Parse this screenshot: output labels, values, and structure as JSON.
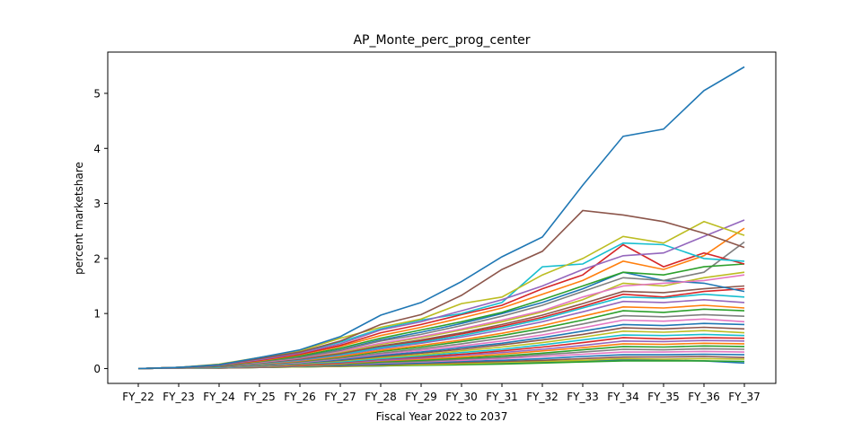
{
  "chart_data": {
    "type": "line",
    "title": "AP_Monte_perc_prog_center",
    "xlabel": "Fiscal Year 2022 to 2037",
    "ylabel": "percent marketshare",
    "categories": [
      "FY_22",
      "FY_23",
      "FY_24",
      "FY_25",
      "FY_26",
      "FY_27",
      "FY_28",
      "FY_29",
      "FY_30",
      "FY_31",
      "FY_32",
      "FY_33",
      "FY_34",
      "FY_35",
      "FY_36",
      "FY_37"
    ],
    "ylim": [
      -0.27,
      5.75
    ],
    "yticks": [
      0,
      1,
      2,
      3,
      4,
      5
    ],
    "grid": false,
    "legend": "none",
    "series": [
      {
        "color": "#1f77b4",
        "values": [
          0,
          0.02,
          0.07,
          0.2,
          0.34,
          0.58,
          0.97,
          1.2,
          1.58,
          2.03,
          2.39,
          3.33,
          4.22,
          4.35,
          5.05,
          5.48
        ]
      },
      {
        "color": "#8c564b",
        "values": [
          0,
          0.02,
          0.07,
          0.18,
          0.3,
          0.5,
          0.8,
          0.98,
          1.33,
          1.8,
          2.13,
          2.87,
          2.79,
          2.67,
          2.46,
          2.2
        ]
      },
      {
        "color": "#bcbd22",
        "values": [
          0,
          0.02,
          0.08,
          0.2,
          0.32,
          0.55,
          0.75,
          0.9,
          1.18,
          1.3,
          1.7,
          2.0,
          2.4,
          2.28,
          2.67,
          2.42
        ]
      },
      {
        "color": "#9467bd",
        "values": [
          0,
          0.02,
          0.06,
          0.16,
          0.28,
          0.45,
          0.7,
          0.85,
          1.05,
          1.25,
          1.5,
          1.8,
          2.05,
          2.1,
          2.4,
          2.7
        ]
      },
      {
        "color": "#17becf",
        "values": [
          0,
          0.02,
          0.07,
          0.17,
          0.29,
          0.48,
          0.72,
          0.88,
          1.0,
          1.2,
          1.85,
          1.9,
          2.28,
          2.25,
          2.0,
          1.95
        ]
      },
      {
        "color": "#d62728",
        "values": [
          0,
          0.02,
          0.06,
          0.15,
          0.26,
          0.42,
          0.65,
          0.8,
          0.98,
          1.15,
          1.45,
          1.7,
          2.25,
          1.85,
          2.1,
          1.9
        ]
      },
      {
        "color": "#ff7f0e",
        "values": [
          0,
          0.02,
          0.06,
          0.14,
          0.25,
          0.4,
          0.6,
          0.75,
          0.92,
          1.1,
          1.35,
          1.6,
          1.95,
          1.8,
          2.05,
          2.55
        ]
      },
      {
        "color": "#2ca02c",
        "values": [
          0,
          0.02,
          0.05,
          0.13,
          0.23,
          0.37,
          0.55,
          0.7,
          0.85,
          1.02,
          1.25,
          1.5,
          1.75,
          1.7,
          1.85,
          1.9
        ]
      },
      {
        "color": "#7f7f7f",
        "values": [
          0,
          0.02,
          0.05,
          0.12,
          0.2,
          0.33,
          0.5,
          0.62,
          0.78,
          0.95,
          1.15,
          1.4,
          1.65,
          1.6,
          1.75,
          2.3
        ]
      },
      {
        "color": "#e377c2",
        "values": [
          0,
          0.02,
          0.05,
          0.11,
          0.19,
          0.31,
          0.46,
          0.58,
          0.72,
          0.88,
          1.05,
          1.3,
          1.5,
          1.55,
          1.6,
          1.7
        ]
      },
      {
        "color": "#1f77b4",
        "values": [
          0,
          0.02,
          0.05,
          0.12,
          0.21,
          0.34,
          0.52,
          0.66,
          0.82,
          1.0,
          1.2,
          1.45,
          1.75,
          1.6,
          1.55,
          1.4
        ]
      },
      {
        "color": "#8c564b",
        "values": [
          0,
          0.02,
          0.04,
          0.1,
          0.17,
          0.27,
          0.41,
          0.52,
          0.65,
          0.8,
          0.97,
          1.18,
          1.4,
          1.38,
          1.45,
          1.5
        ]
      },
      {
        "color": "#bcbd22",
        "values": [
          0,
          0.02,
          0.05,
          0.11,
          0.18,
          0.29,
          0.44,
          0.56,
          0.7,
          0.85,
          1.03,
          1.25,
          1.55,
          1.5,
          1.65,
          1.75
        ]
      },
      {
        "color": "#17becf",
        "values": [
          0,
          0.02,
          0.04,
          0.09,
          0.16,
          0.25,
          0.38,
          0.48,
          0.6,
          0.74,
          0.9,
          1.1,
          1.3,
          1.28,
          1.35,
          1.3
        ]
      },
      {
        "color": "#d62728",
        "values": [
          0,
          0.02,
          0.04,
          0.1,
          0.16,
          0.26,
          0.4,
          0.5,
          0.63,
          0.77,
          0.93,
          1.13,
          1.35,
          1.3,
          1.4,
          1.45
        ]
      },
      {
        "color": "#9467bd",
        "values": [
          0,
          0.02,
          0.04,
          0.09,
          0.15,
          0.24,
          0.36,
          0.46,
          0.57,
          0.7,
          0.85,
          1.03,
          1.22,
          1.2,
          1.25,
          1.2
        ]
      },
      {
        "color": "#ff7f0e",
        "values": [
          0,
          0.02,
          0.04,
          0.08,
          0.14,
          0.22,
          0.33,
          0.42,
          0.52,
          0.64,
          0.78,
          0.95,
          1.12,
          1.1,
          1.15,
          1.1
        ]
      },
      {
        "color": "#2ca02c",
        "values": [
          0,
          0.02,
          0.04,
          0.08,
          0.13,
          0.21,
          0.31,
          0.39,
          0.49,
          0.6,
          0.73,
          0.88,
          1.05,
          1.02,
          1.08,
          1.05
        ]
      },
      {
        "color": "#7f7f7f",
        "values": [
          0,
          0.01,
          0.03,
          0.07,
          0.12,
          0.19,
          0.28,
          0.36,
          0.45,
          0.55,
          0.67,
          0.81,
          0.96,
          0.94,
          0.98,
          0.95
        ]
      },
      {
        "color": "#e377c2",
        "values": [
          0,
          0.01,
          0.03,
          0.07,
          0.11,
          0.18,
          0.26,
          0.33,
          0.41,
          0.5,
          0.61,
          0.74,
          0.88,
          0.86,
          0.9,
          0.85
        ]
      },
      {
        "color": "#1f77b4",
        "values": [
          0,
          0.01,
          0.03,
          0.06,
          0.1,
          0.16,
          0.24,
          0.3,
          0.38,
          0.46,
          0.56,
          0.68,
          0.8,
          0.78,
          0.82,
          0.8
        ]
      },
      {
        "color": "#8c564b",
        "values": [
          0,
          0.01,
          0.03,
          0.06,
          0.1,
          0.15,
          0.22,
          0.28,
          0.35,
          0.43,
          0.52,
          0.62,
          0.74,
          0.72,
          0.75,
          0.72
        ]
      },
      {
        "color": "#bcbd22",
        "values": [
          0,
          0.01,
          0.03,
          0.05,
          0.09,
          0.14,
          0.2,
          0.25,
          0.32,
          0.39,
          0.47,
          0.57,
          0.68,
          0.66,
          0.69,
          0.65
        ]
      },
      {
        "color": "#17becf",
        "values": [
          0,
          0.01,
          0.02,
          0.05,
          0.08,
          0.12,
          0.18,
          0.23,
          0.29,
          0.35,
          0.43,
          0.52,
          0.61,
          0.6,
          0.62,
          0.6
        ]
      },
      {
        "color": "#d62728",
        "values": [
          0,
          0.01,
          0.02,
          0.05,
          0.07,
          0.11,
          0.17,
          0.21,
          0.26,
          0.32,
          0.39,
          0.47,
          0.56,
          0.54,
          0.56,
          0.55
        ]
      },
      {
        "color": "#9467bd",
        "values": [
          0,
          0.01,
          0.02,
          0.04,
          0.07,
          0.1,
          0.15,
          0.19,
          0.24,
          0.29,
          0.35,
          0.42,
          0.5,
          0.49,
          0.51,
          0.5
        ]
      },
      {
        "color": "#ff7f0e",
        "values": [
          0,
          0.01,
          0.02,
          0.04,
          0.06,
          0.09,
          0.14,
          0.17,
          0.21,
          0.26,
          0.32,
          0.38,
          0.45,
          0.44,
          0.46,
          0.45
        ]
      },
      {
        "color": "#2ca02c",
        "values": [
          0,
          0.01,
          0.02,
          0.04,
          0.06,
          0.08,
          0.12,
          0.15,
          0.19,
          0.23,
          0.28,
          0.34,
          0.4,
          0.39,
          0.41,
          0.4
        ]
      },
      {
        "color": "#7f7f7f",
        "values": [
          0,
          0.01,
          0.02,
          0.03,
          0.05,
          0.07,
          0.11,
          0.13,
          0.17,
          0.2,
          0.25,
          0.3,
          0.35,
          0.34,
          0.36,
          0.35
        ]
      },
      {
        "color": "#e377c2",
        "values": [
          0,
          0.01,
          0.02,
          0.03,
          0.05,
          0.07,
          0.1,
          0.12,
          0.15,
          0.18,
          0.22,
          0.26,
          0.3,
          0.3,
          0.31,
          0.3
        ]
      },
      {
        "color": "#1f77b4",
        "values": [
          0,
          0.01,
          0.02,
          0.03,
          0.04,
          0.06,
          0.08,
          0.1,
          0.13,
          0.15,
          0.18,
          0.22,
          0.25,
          0.25,
          0.26,
          0.25
        ]
      },
      {
        "color": "#8c564b",
        "values": [
          0,
          0.01,
          0.01,
          0.02,
          0.04,
          0.05,
          0.07,
          0.09,
          0.11,
          0.13,
          0.15,
          0.18,
          0.21,
          0.21,
          0.22,
          0.2
        ]
      },
      {
        "color": "#bcbd22",
        "values": [
          0,
          0.01,
          0.01,
          0.02,
          0.03,
          0.04,
          0.06,
          0.07,
          0.09,
          0.11,
          0.13,
          0.15,
          0.18,
          0.17,
          0.18,
          0.17
        ]
      },
      {
        "color": "#2ca02c",
        "values": [
          0,
          0.01,
          0.01,
          0.02,
          0.03,
          0.04,
          0.05,
          0.06,
          0.07,
          0.08,
          0.1,
          0.12,
          0.14,
          0.14,
          0.14,
          0.13
        ]
      },
      {
        "color": "#1f77b4",
        "values": [
          0,
          0.01,
          0.01,
          0.02,
          0.03,
          0.04,
          0.05,
          0.07,
          0.09,
          0.1,
          0.12,
          0.14,
          0.16,
          0.15,
          0.14,
          0.1
        ]
      }
    ]
  }
}
